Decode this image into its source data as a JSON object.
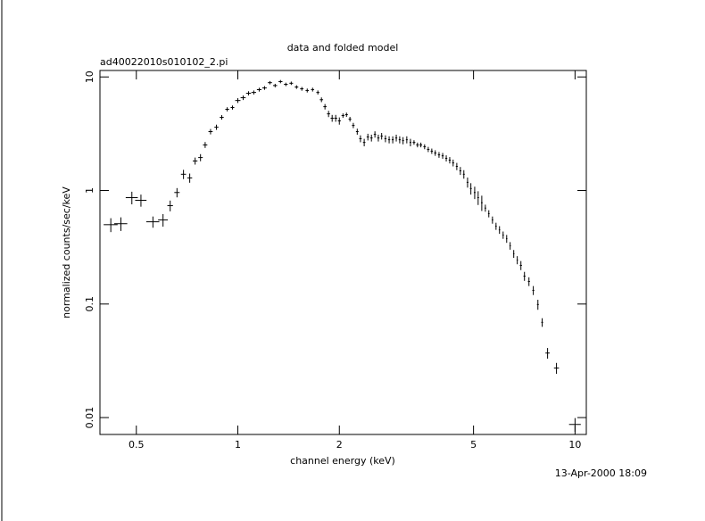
{
  "chart_data": {
    "type": "errorbar",
    "title": "data and folded model",
    "subtitle": "ad40022010s010102_2.pi",
    "x_label": "channel energy (keV)",
    "y_label": "normalized counts/sec/keV",
    "footnote": "13-Apr-2000 18:09",
    "x_log": true,
    "y_log": true,
    "color": "#000000",
    "xlim": [
      0.39,
      10.8
    ],
    "ylim": [
      0.0071,
      11.4
    ],
    "xticks": [
      0.5,
      1,
      2,
      5,
      10
    ],
    "yticks": [
      0.01,
      0.1,
      1,
      10
    ],
    "x": [
      0.42,
      0.45,
      0.485,
      0.516,
      0.56,
      0.6,
      0.63,
      0.66,
      0.69,
      0.72,
      0.747,
      0.775,
      0.8,
      0.83,
      0.864,
      0.896,
      0.93,
      0.964,
      1.0,
      1.037,
      1.076,
      1.115,
      1.157,
      1.2,
      1.245,
      1.29,
      1.338,
      1.388,
      1.44,
      1.493,
      1.548,
      1.606,
      1.666,
      1.727,
      1.77,
      1.813,
      1.858,
      1.904,
      1.951,
      2.0,
      2.05,
      2.1,
      2.15,
      2.2,
      2.26,
      2.31,
      2.37,
      2.43,
      2.49,
      2.55,
      2.61,
      2.67,
      2.74,
      2.81,
      2.88,
      2.95,
      3.02,
      3.09,
      3.17,
      3.25,
      3.33,
      3.41,
      3.49,
      3.58,
      3.67,
      3.76,
      3.85,
      3.95,
      4.05,
      4.15,
      4.25,
      4.35,
      4.46,
      4.57,
      4.68,
      4.8,
      4.91,
      5.04,
      5.16,
      5.29,
      5.42,
      5.55,
      5.69,
      5.83,
      5.97,
      6.12,
      6.27,
      6.42,
      6.58,
      6.74,
      6.91,
      7.08,
      7.3,
      7.52,
      7.76,
      7.99,
      8.29,
      8.81,
      10.0
    ],
    "values": [
      0.5,
      0.51,
      0.865,
      0.82,
      0.53,
      0.55,
      0.735,
      0.96,
      1.39,
      1.29,
      1.82,
      1.95,
      2.52,
      3.3,
      3.61,
      4.41,
      5.19,
      5.38,
      6.2,
      6.56,
      7.18,
      7.3,
      7.73,
      8.0,
      8.9,
      8.4,
      9.1,
      8.6,
      8.8,
      8.15,
      7.86,
      7.6,
      7.74,
      7.3,
      6.3,
      5.47,
      4.73,
      4.33,
      4.33,
      4.1,
      4.57,
      4.65,
      4.25,
      3.74,
      3.3,
      2.86,
      2.65,
      2.96,
      2.9,
      3.12,
      2.9,
      3.01,
      2.86,
      2.8,
      2.8,
      2.9,
      2.8,
      2.75,
      2.8,
      2.65,
      2.65,
      2.52,
      2.52,
      2.43,
      2.3,
      2.22,
      2.14,
      2.06,
      2.02,
      1.92,
      1.85,
      1.75,
      1.63,
      1.49,
      1.39,
      1.18,
      1.04,
      0.96,
      0.865,
      0.78,
      0.7,
      0.625,
      0.55,
      0.485,
      0.45,
      0.405,
      0.376,
      0.326,
      0.277,
      0.244,
      0.219,
      0.176,
      0.158,
      0.132,
      0.099,
      0.069,
      0.037,
      0.0273,
      0.0087
    ],
    "xerr": [
      0.02,
      0.02,
      0.02,
      0.02,
      0.025,
      0.02,
      0.012,
      0.012,
      0.012,
      0.012,
      0.012,
      0.012,
      0.012,
      0.012,
      0.012,
      0.012,
      0.012,
      0.012,
      0.018,
      0.018,
      0.018,
      0.018,
      0.018,
      0.018,
      0.018,
      0.018,
      0.018,
      0.018,
      0.018,
      0.018,
      0.018,
      0.018,
      0.018,
      0.018,
      0.02,
      0.02,
      0.02,
      0.02,
      0.02,
      0.02,
      0.02,
      0.02,
      0.02,
      0.02,
      0.02,
      0.02,
      0.02,
      0.02,
      0.02,
      0.02,
      0.02,
      0.02,
      0.02,
      0.02,
      0.02,
      0.02,
      0.02,
      0.02,
      0.02,
      0.02,
      0.03,
      0.03,
      0.03,
      0.03,
      0.03,
      0.03,
      0.03,
      0.03,
      0.03,
      0.03,
      0.03,
      0.03,
      0.03,
      0.03,
      0.03,
      0.03,
      0.03,
      0.03,
      0.03,
      0.03,
      0.03,
      0.03,
      0.03,
      0.03,
      0.03,
      0.03,
      0.03,
      0.03,
      0.03,
      0.03,
      0.05,
      0.05,
      0.05,
      0.05,
      0.05,
      0.05,
      0.12,
      0.15,
      0.4
    ],
    "yerr": [
      0.07,
      0.07,
      0.11,
      0.1,
      0.06,
      0.07,
      0.08,
      0.09,
      0.13,
      0.12,
      0.13,
      0.14,
      0.15,
      0.18,
      0.19,
      0.2,
      0.22,
      0.22,
      0.3,
      0.3,
      0.3,
      0.3,
      0.3,
      0.3,
      0.3,
      0.3,
      0.3,
      0.3,
      0.3,
      0.3,
      0.3,
      0.3,
      0.3,
      0.3,
      0.3,
      0.3,
      0.3,
      0.3,
      0.3,
      0.3,
      0.2,
      0.2,
      0.2,
      0.2,
      0.2,
      0.2,
      0.2,
      0.2,
      0.2,
      0.2,
      0.2,
      0.2,
      0.2,
      0.2,
      0.2,
      0.2,
      0.2,
      0.2,
      0.2,
      0.2,
      0.12,
      0.12,
      0.12,
      0.12,
      0.12,
      0.12,
      0.12,
      0.12,
      0.12,
      0.12,
      0.12,
      0.12,
      0.12,
      0.12,
      0.12,
      0.12,
      0.12,
      0.12,
      0.12,
      0.12,
      0.05,
      0.045,
      0.04,
      0.035,
      0.035,
      0.03,
      0.03,
      0.025,
      0.022,
      0.02,
      0.02,
      0.016,
      0.014,
      0.012,
      0.01,
      0.006,
      0.004,
      0.003,
      0.0012
    ]
  }
}
